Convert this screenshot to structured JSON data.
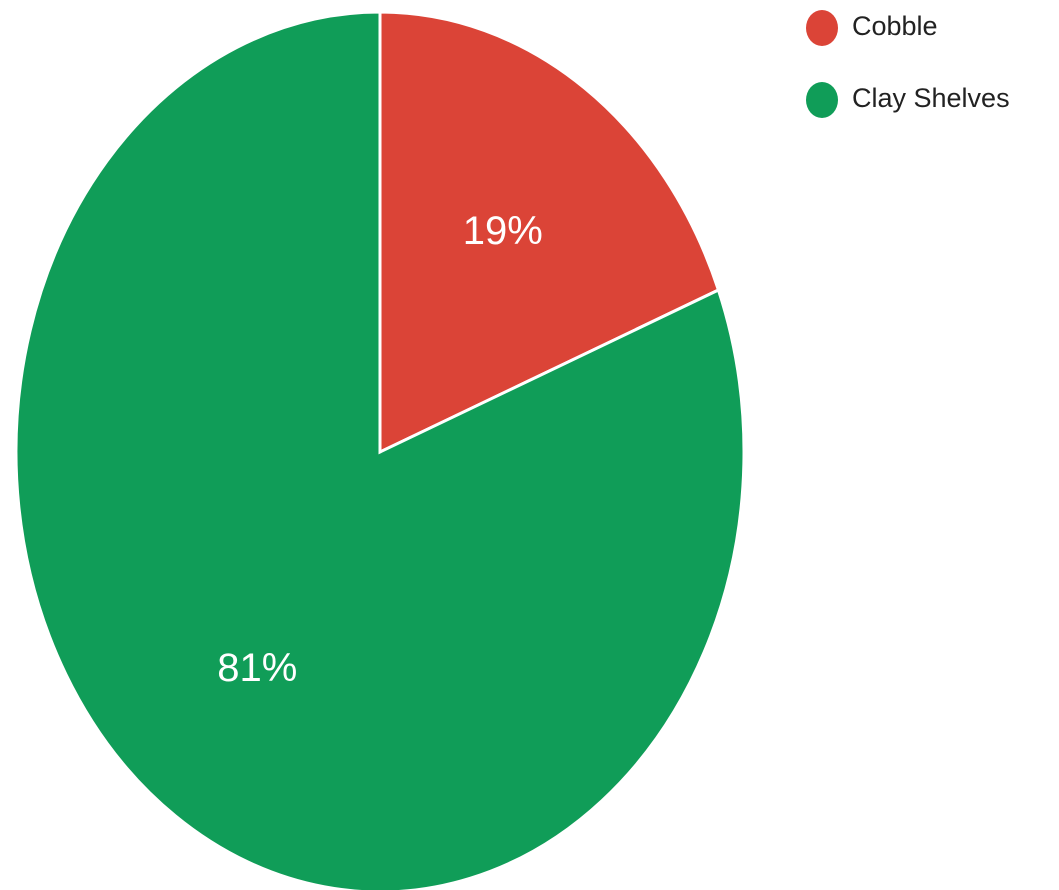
{
  "chart_data": {
    "type": "pie",
    "start": "top",
    "direction": "clockwise",
    "slices": [
      {
        "name": "Cobble",
        "value": 19,
        "label": "19%",
        "color": "#db4437"
      },
      {
        "name": "Clay Shelves",
        "value": 81,
        "label": "81%",
        "color": "#109d58"
      }
    ],
    "legend": {
      "position": "top-right",
      "entries": [
        "Cobble",
        "Clay Shelves"
      ]
    },
    "slice_border_color": "#ffffff"
  }
}
